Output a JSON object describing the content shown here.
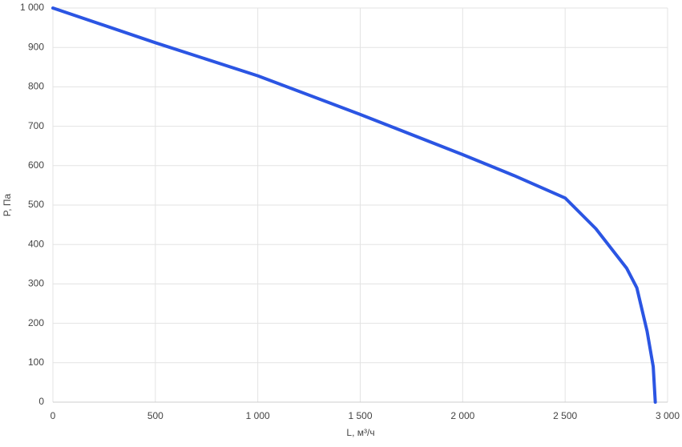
{
  "chart_data": {
    "type": "line",
    "x_label": "L, м³/ч",
    "y_label": "P, Па",
    "x": [
      0,
      500,
      1000,
      1500,
      2000,
      2250,
      2500,
      2650,
      2800,
      2850,
      2900,
      2930,
      2940
    ],
    "series": [
      {
        "color": "#2b55e3",
        "values": [
          1000,
          912,
          828,
          730,
          628,
          575,
          518,
          440,
          340,
          290,
          180,
          90,
          0
        ]
      }
    ],
    "xlim": [
      0,
      3000
    ],
    "xticks": [
      0,
      500,
      {
        "value": 1000,
        "label": "1 000"
      },
      {
        "value": 1500,
        "label": "1 500"
      },
      {
        "value": 2000,
        "label": "2 000"
      },
      {
        "value": 2500,
        "label": "2 500"
      },
      {
        "value": 3000,
        "label": "3 000"
      }
    ],
    "ylim": [
      0,
      1000
    ],
    "yticks": [
      0,
      100,
      200,
      300,
      400,
      500,
      600,
      700,
      800,
      900,
      {
        "value": 1000,
        "label": "1 000"
      }
    ],
    "grid": true
  }
}
